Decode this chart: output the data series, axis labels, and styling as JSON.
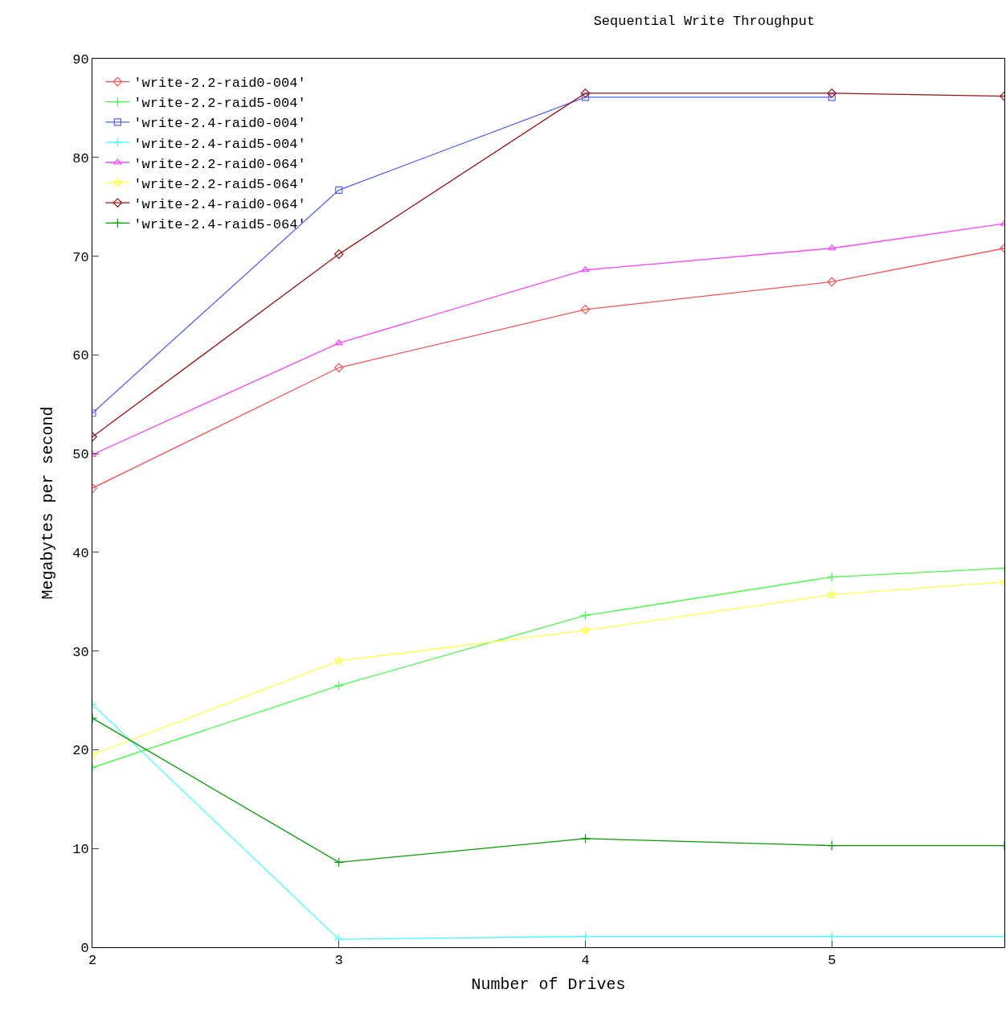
{
  "chart_data": {
    "type": "line",
    "title": "Sequential Write Throughput",
    "xlabel": "Number of Drives",
    "ylabel": "Megabytes per second",
    "x": [
      2,
      3,
      4,
      5,
      5.7
    ],
    "xlim": [
      2,
      5.7
    ],
    "xticks": [
      2,
      3,
      4,
      5
    ],
    "ylim": [
      0,
      90
    ],
    "yticks": [
      0,
      10,
      20,
      30,
      40,
      50,
      60,
      70,
      80,
      90
    ],
    "grid": false,
    "legend": "top left",
    "line_style": "solid",
    "series": [
      {
        "name": "'write-2.2-raid0-004'",
        "color": "#ff5050",
        "marker": "diamond",
        "values": [
          46.5,
          58.7,
          64.6,
          67.4,
          70.8
        ]
      },
      {
        "name": "'write-2.2-raid5-004'",
        "color": "#40ff40",
        "marker": "cross",
        "values": [
          18.2,
          26.5,
          33.6,
          37.5,
          38.4
        ]
      },
      {
        "name": "'write-2.4-raid0-004'",
        "color": "#5060ff",
        "marker": "square",
        "x": [
          2,
          3,
          4,
          5
        ],
        "values": [
          54.1,
          76.7,
          86.1,
          86.1
        ]
      },
      {
        "name": "'write-2.4-raid5-004'",
        "color": "#40ffff",
        "marker": "cross",
        "values": [
          24.6,
          0.8,
          1.1,
          1.1,
          1.1
        ]
      },
      {
        "name": "'write-2.2-raid0-064'",
        "color": "#ff40ff",
        "marker": "triangle",
        "values": [
          49.9,
          61.2,
          68.6,
          70.8,
          73.3
        ]
      },
      {
        "name": "'write-2.2-raid5-064'",
        "color": "#ffff40",
        "marker": "star",
        "values": [
          19.5,
          29.0,
          32.1,
          35.7,
          37.0
        ]
      },
      {
        "name": "'write-2.4-raid0-064'",
        "color": "#a01010",
        "marker": "diamond",
        "values": [
          51.7,
          70.2,
          86.5,
          86.5,
          86.2
        ]
      },
      {
        "name": "'write-2.4-raid5-064'",
        "color": "#00a000",
        "marker": "cross",
        "values": [
          23.2,
          8.6,
          11.0,
          10.3,
          10.3
        ]
      }
    ]
  }
}
